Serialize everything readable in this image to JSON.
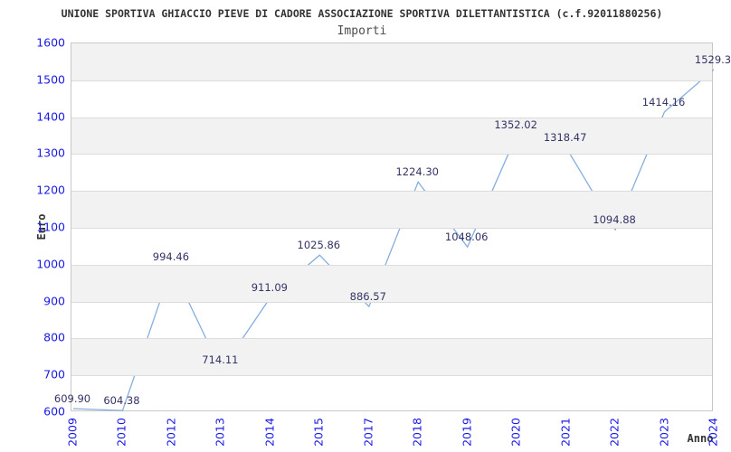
{
  "chart_data": {
    "type": "line",
    "title": "UNIONE SPORTIVA GHIACCIO PIEVE DI CADORE ASSOCIAZIONE SPORTIVA DILETTANTISTICA (c.f.92011880256)",
    "subtitle": "Importi",
    "xlabel": "Anno",
    "ylabel": "Euro",
    "categories": [
      "2009",
      "2010",
      "2012",
      "2013",
      "2014",
      "2015",
      "2017",
      "2018",
      "2019",
      "2020",
      "2021",
      "2022",
      "2023",
      "2024"
    ],
    "values": [
      609.9,
      604.38,
      994.46,
      714.11,
      911.09,
      1025.86,
      886.57,
      1224.3,
      1048.06,
      1352.02,
      1318.47,
      1094.88,
      1414.16,
      1529.3
    ],
    "point_labels": [
      "609.90",
      "604.38",
      "994.46",
      "714.11",
      "911.09",
      "1025.86",
      "886.57",
      "1224.30",
      "1048.06",
      "1352.02",
      "1318.47",
      "1094.88",
      "1414.16",
      "1529.3"
    ],
    "ylim": [
      600,
      1600
    ],
    "ytick_step": 100,
    "grid": "horizontal-bands",
    "legend": "none",
    "colors": {
      "line": "#85aede",
      "tick_label": "#1a1ae6",
      "data_label": "#333366",
      "band": "#f2f2f2",
      "gridline": "#dcdcdc",
      "plot_border": "#c8c8c8",
      "title": "#333333",
      "subtitle": "#4d4d4d",
      "axis_title": "#333333",
      "background": "#ffffff"
    }
  }
}
